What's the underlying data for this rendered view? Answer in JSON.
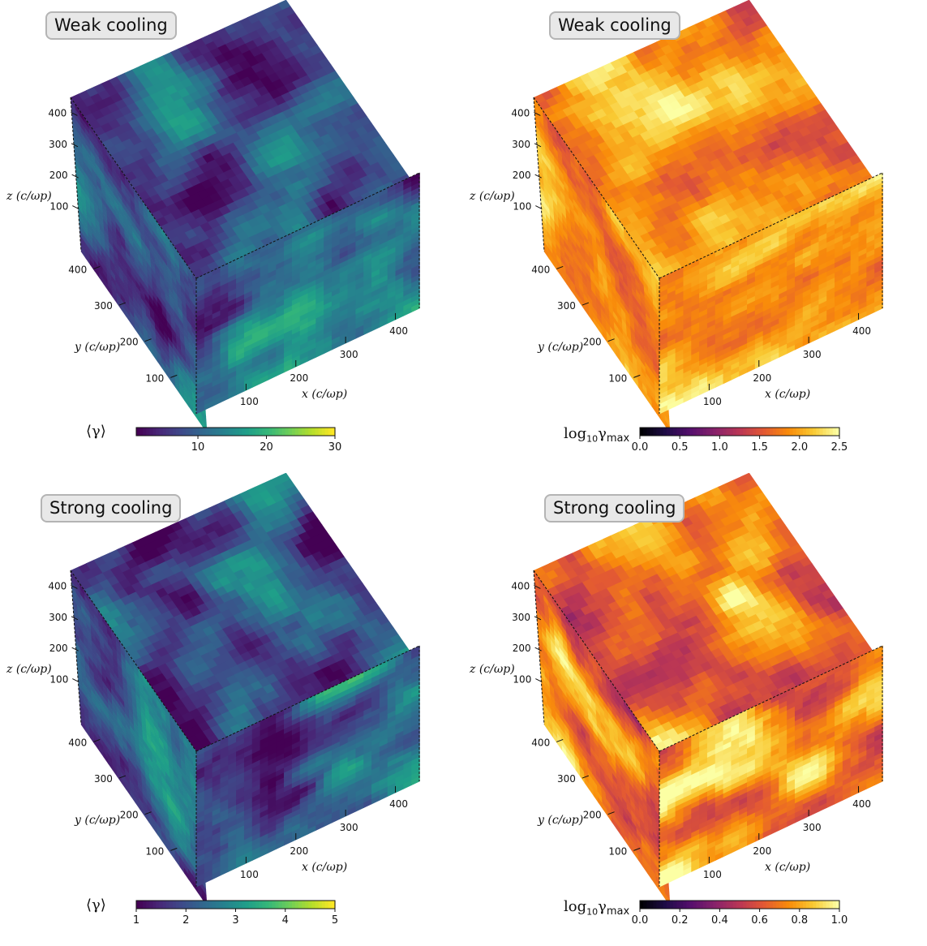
{
  "chart_data": [
    {
      "type": "heatmap",
      "title": "Weak cooling",
      "colormap": "viridis",
      "colorbar_label": "⟨γ⟩",
      "colorbar_range": [
        1,
        30
      ],
      "colorbar_ticks": [
        "10",
        "20",
        "30"
      ],
      "colorbar_tick_values": [
        10,
        20,
        30
      ],
      "xlabel": "x (c/ωp)",
      "ylabel": "y (c/ωp)",
      "zlabel": "z (c/ωp)",
      "xticks": [
        "100",
        "200",
        "300",
        "400"
      ],
      "yticks": [
        "100",
        "200",
        "300",
        "400"
      ],
      "zticks": [
        "100",
        "200",
        "300",
        "400"
      ],
      "axis_range": [
        0,
        448
      ],
      "field_mean": 0.3,
      "field_contrast": 0.55,
      "seed": 11
    },
    {
      "type": "heatmap",
      "title": "Weak cooling",
      "colormap": "inferno",
      "colorbar_label": "log10γmax",
      "colorbar_range": [
        0.0,
        2.5
      ],
      "colorbar_ticks": [
        "0.0",
        "0.5",
        "1.0",
        "1.5",
        "2.0",
        "2.5"
      ],
      "colorbar_tick_values": [
        0.0,
        0.5,
        1.0,
        1.5,
        2.0,
        2.5
      ],
      "xlabel": "x (c/ωp)",
      "ylabel": "y (c/ωp)",
      "zlabel": "z (c/ωp)",
      "xticks": [
        "100",
        "200",
        "300",
        "400"
      ],
      "yticks": [
        "100",
        "200",
        "300",
        "400"
      ],
      "zticks": [
        "100",
        "200",
        "300",
        "400"
      ],
      "axis_range": [
        0,
        448
      ],
      "field_mean": 0.78,
      "field_contrast": 0.35,
      "seed": 23
    },
    {
      "type": "heatmap",
      "title": "Strong cooling",
      "colormap": "viridis",
      "colorbar_label": "⟨γ⟩",
      "colorbar_range": [
        1,
        5
      ],
      "colorbar_ticks": [
        "1",
        "2",
        "3",
        "4",
        "5"
      ],
      "colorbar_tick_values": [
        1,
        2,
        3,
        4,
        5
      ],
      "xlabel": "x (c/ωp)",
      "ylabel": "y (c/ωp)",
      "zlabel": "z (c/ωp)",
      "xticks": [
        "100",
        "200",
        "300",
        "400"
      ],
      "yticks": [
        "100",
        "200",
        "300",
        "400"
      ],
      "zticks": [
        "100",
        "200",
        "300",
        "400"
      ],
      "axis_range": [
        0,
        448
      ],
      "field_mean": 0.32,
      "field_contrast": 0.6,
      "seed": 37
    },
    {
      "type": "heatmap",
      "title": "Strong cooling",
      "colormap": "inferno",
      "colorbar_label": "log10γmax",
      "colorbar_range": [
        0.0,
        1.0
      ],
      "colorbar_ticks": [
        "0.0",
        "0.2",
        "0.4",
        "0.6",
        "0.8",
        "1.0"
      ],
      "colorbar_tick_values": [
        0.0,
        0.2,
        0.4,
        0.6,
        0.8,
        1.0
      ],
      "xlabel": "x (c/ωp)",
      "ylabel": "y (c/ωp)",
      "zlabel": "z (c/ωp)",
      "xticks": [
        "100",
        "200",
        "300",
        "400"
      ],
      "yticks": [
        "100",
        "200",
        "300",
        "400"
      ],
      "zticks": [
        "100",
        "200",
        "300",
        "400"
      ],
      "axis_range": [
        0,
        448
      ],
      "field_mean": 0.78,
      "field_contrast": 0.5,
      "seed": 53
    }
  ]
}
